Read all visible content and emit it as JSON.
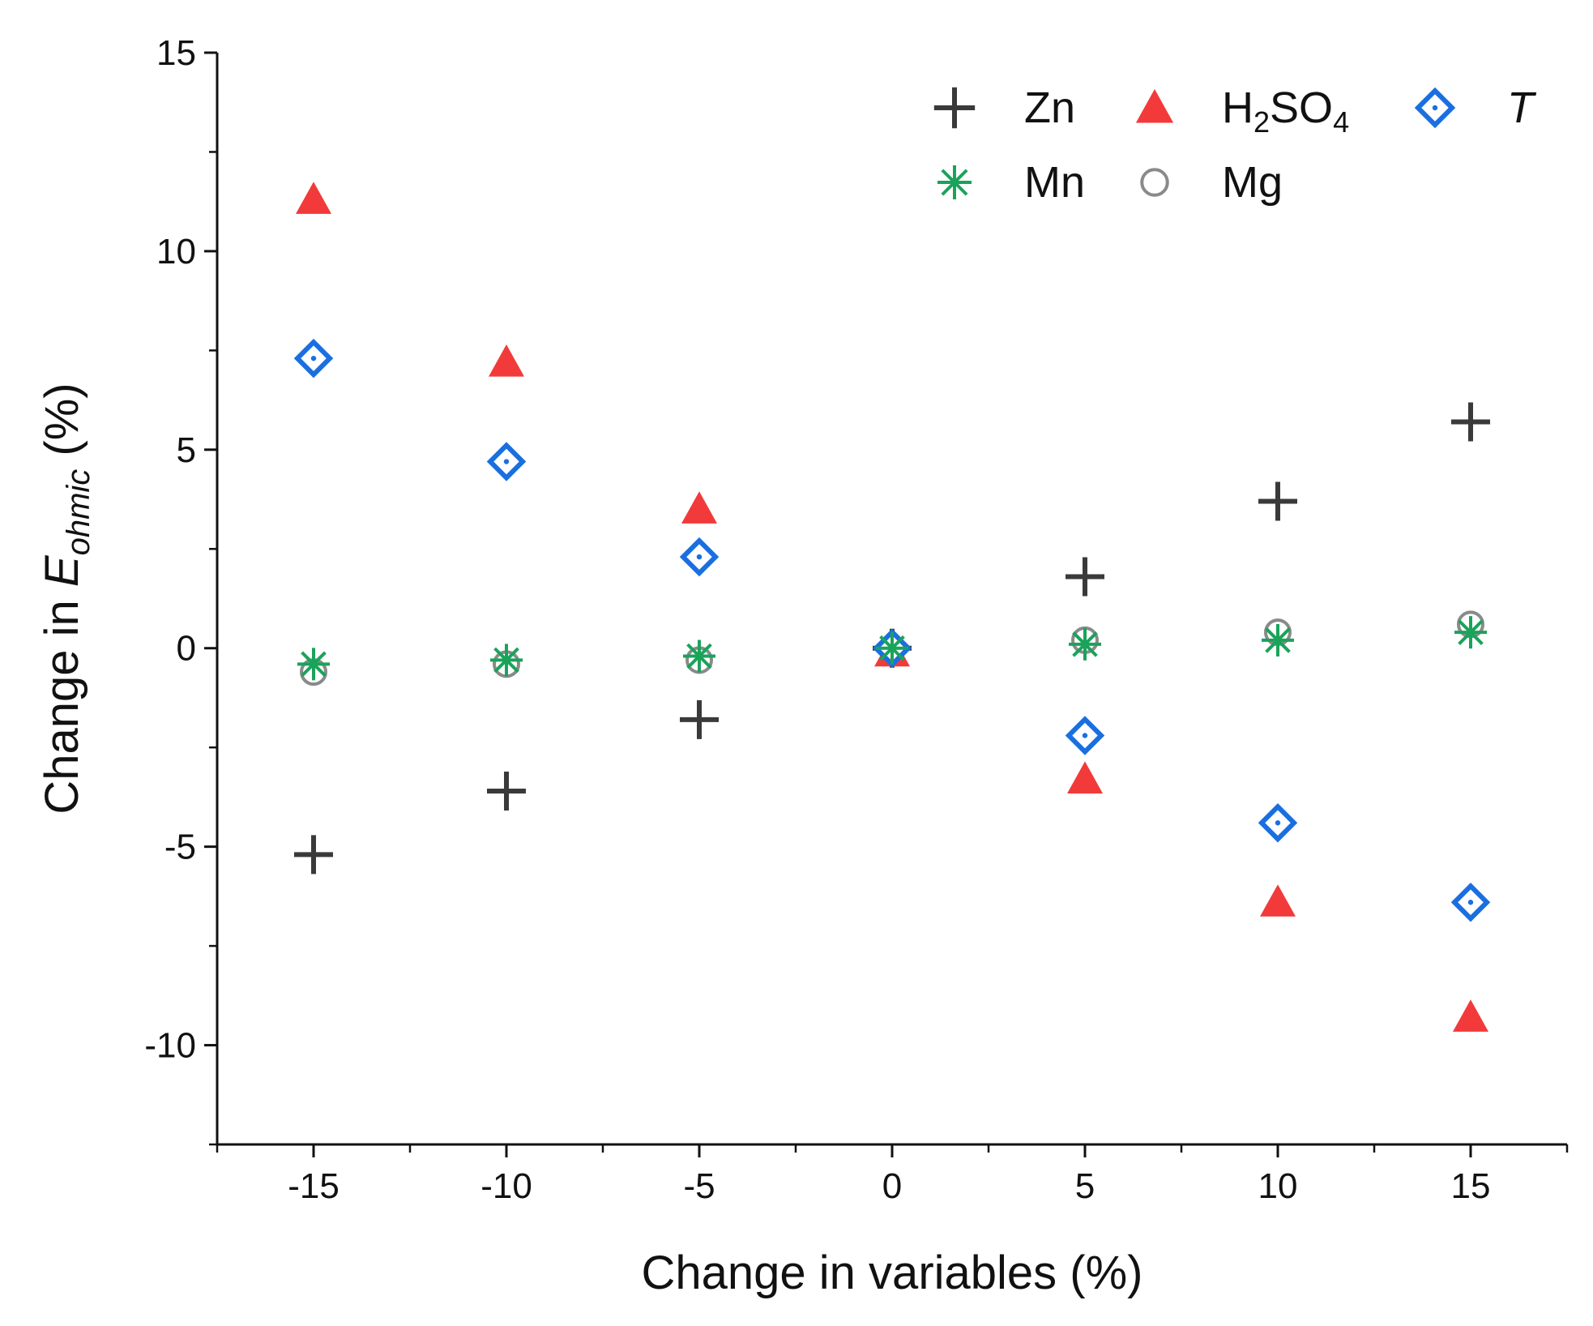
{
  "chart_data": {
    "type": "scatter",
    "title": "",
    "xlabel": "Change in variables (%)",
    "ylabel": {
      "prefix": "Change in ",
      "main": "E",
      "sub": "ohmic",
      "suffix": " (%)"
    },
    "xlim": [
      -17.5,
      17.5
    ],
    "ylim": [
      -12.5,
      15
    ],
    "x_ticks": [
      -15,
      -10,
      -5,
      0,
      5,
      10,
      15
    ],
    "x_tick_labels": [
      "-15",
      "-10",
      "-5",
      "0",
      "5",
      "10",
      "15"
    ],
    "y_ticks": [
      -10,
      -5,
      0,
      5,
      10,
      15
    ],
    "y_tick_labels": [
      "-10",
      "-5",
      "0",
      "5",
      "10",
      "15"
    ],
    "grid": false,
    "legend_position": "top-right",
    "series": [
      {
        "name": "Zn",
        "label_parts": [
          {
            "t": "Zn",
            "sub": false
          }
        ],
        "marker": "plus",
        "color": "#3a3a3a",
        "x": [
          -15,
          -10,
          -5,
          0,
          5,
          10,
          15
        ],
        "y": [
          -5.2,
          -3.6,
          -1.8,
          0,
          1.8,
          3.7,
          5.7
        ]
      },
      {
        "name": "H2SO4",
        "label_parts": [
          {
            "t": "H",
            "sub": false
          },
          {
            "t": "2",
            "sub": true
          },
          {
            "t": "SO",
            "sub": false
          },
          {
            "t": "4",
            "sub": true
          }
        ],
        "marker": "triangle",
        "color": "#f23a3a",
        "x": [
          -15,
          -10,
          -5,
          0,
          5,
          10,
          15
        ],
        "y": [
          11.3,
          7.2,
          3.5,
          -0.1,
          -3.3,
          -6.4,
          -9.3
        ]
      },
      {
        "name": "T",
        "label_parts": [
          {
            "t": "T",
            "sub": false,
            "italic": true
          }
        ],
        "marker": "diamond",
        "color": "#1a6fe0",
        "x": [
          -15,
          -10,
          -5,
          0,
          5,
          10,
          15
        ],
        "y": [
          7.3,
          4.7,
          2.3,
          0,
          -2.2,
          -4.4,
          -6.4
        ]
      },
      {
        "name": "Mn",
        "label_parts": [
          {
            "t": "Mn",
            "sub": false
          }
        ],
        "marker": "asterisk",
        "color": "#1aa35a",
        "x": [
          -15,
          -10,
          -5,
          0,
          5,
          10,
          15
        ],
        "y": [
          -0.4,
          -0.3,
          -0.2,
          0,
          0.1,
          0.2,
          0.4
        ]
      },
      {
        "name": "Mg",
        "label_parts": [
          {
            "t": "Mg",
            "sub": false
          }
        ],
        "marker": "circle",
        "color": "#8a8a8a",
        "x": [
          -15,
          -10,
          -5,
          0,
          5,
          10,
          15
        ],
        "y": [
          -0.6,
          -0.4,
          -0.3,
          0,
          0.2,
          0.4,
          0.6
        ]
      }
    ]
  }
}
